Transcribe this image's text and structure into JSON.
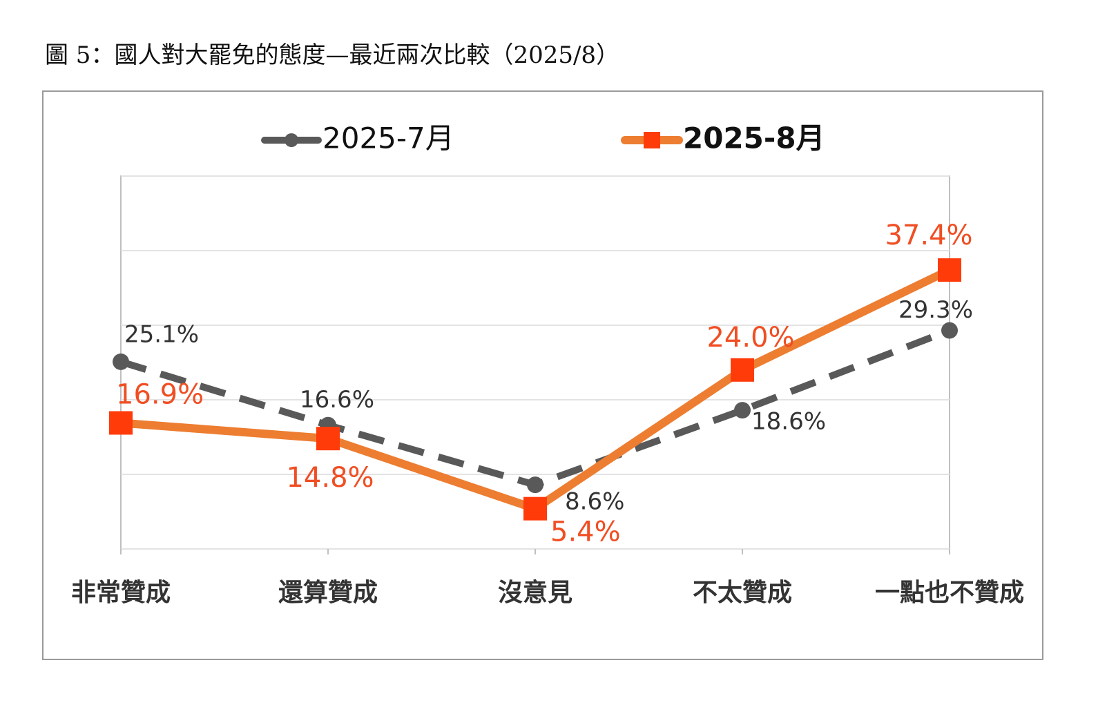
{
  "chart_data": {
    "type": "line",
    "title": "圖 5：國人對大罷免的態度—最近兩次比較（2025/8）",
    "categories": [
      "非常贊成",
      "還算贊成",
      "沒意見",
      "不太贊成",
      "一點也不贊成"
    ],
    "series": [
      {
        "name": "2025-7月",
        "color": "#595959",
        "line_style": "dashed",
        "marker": "circle",
        "values": [
          25.1,
          16.6,
          8.6,
          18.6,
          29.3
        ],
        "value_labels": [
          "25.1%",
          "16.6%",
          "8.6%",
          "18.6%",
          "29.3%"
        ],
        "label_color": "#333333"
      },
      {
        "name": "2025-8月",
        "color": "#ed7d31",
        "marker_color": "#ff3b0a",
        "line_style": "solid",
        "marker": "square",
        "values": [
          16.9,
          14.8,
          5.4,
          24.0,
          37.4
        ],
        "value_labels": [
          "16.9%",
          "14.8%",
          "5.4%",
          "24.0%",
          "37.4%"
        ],
        "label_color": "#f04e23"
      }
    ],
    "ylim": [
      0,
      50
    ],
    "yticks": [
      0,
      10,
      20,
      30,
      40,
      50
    ],
    "grid": true
  }
}
